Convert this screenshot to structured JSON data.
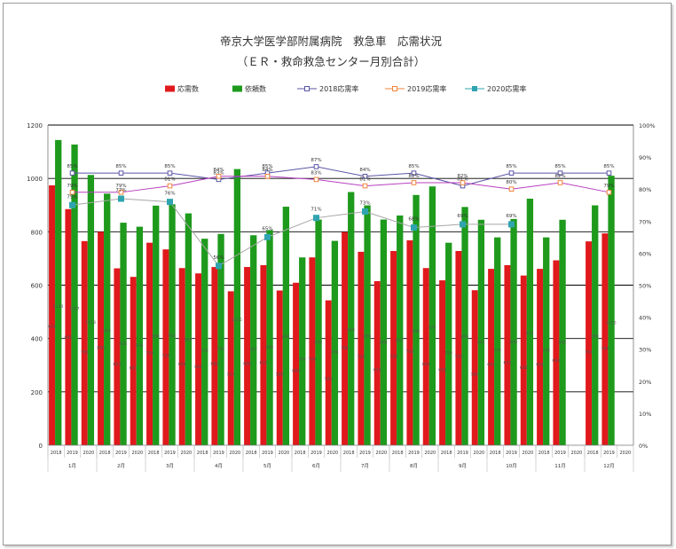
{
  "chart_data": {
    "type": "bar",
    "title": "帝京大学医学部附属病院　救急車　応需状況",
    "subtitle": "（ＥＲ・救命救急センター月別合計）",
    "months": [
      "1月",
      "2月",
      "3月",
      "4月",
      "5月",
      "6月",
      "7月",
      "8月",
      "9月",
      "10月",
      "11月",
      "12月"
    ],
    "years": [
      "2018",
      "2019",
      "2020"
    ],
    "ylim": [
      0,
      1200
    ],
    "yticks": [
      0,
      200,
      400,
      600,
      800,
      1000,
      1200
    ],
    "y2lim": [
      0,
      100
    ],
    "y2ticks": [
      "0%",
      "10%",
      "20%",
      "30%",
      "40%",
      "50%",
      "60%",
      "70%",
      "80%",
      "90%",
      "100%"
    ],
    "grid": true,
    "legend_position": "top",
    "colors": {
      "応需数": "#e0191c",
      "依頼数": "#1e9a1c",
      "2018応需率": "#5b55a6",
      "2019応需率": "#f0863c",
      "2020応需率": "#2fa4b0",
      "2019line": "#b83fbf",
      "2020line": "#a6a6a6"
    },
    "legend": [
      "応需数",
      "依頼数",
      "2018応需率",
      "2019応需率",
      "2020応需率"
    ],
    "bars": {
      "応需数": [
        974,
        885,
        765,
        800,
        663,
        631,
        759,
        734,
        664,
        644,
        668,
        577,
        668,
        675,
        580,
        609,
        704,
        543,
        799,
        725,
        615,
        728,
        768,
        664,
        618,
        728,
        581,
        661,
        675,
        636,
        661,
        693,
        null,
        764,
        794,
        null
      ],
      "依頼数": [
        1144,
        1127,
        1013,
        943,
        834,
        819,
        898,
        903,
        869,
        774,
        792,
        1035,
        787,
        806,
        894,
        704,
        846,
        766,
        949,
        899,
        846,
        861,
        938,
        970,
        759,
        893,
        845,
        779,
        848,
        924,
        779,
        845,
        null,
        899,
        1010,
        null
      ]
    },
    "bar_labels": {
      "応需数": [
        "974",
        "885",
        "765",
        "800",
        "663",
        "631",
        "759",
        "734",
        "664",
        "644",
        "668",
        "577",
        "668",
        "675",
        "580",
        "609",
        "704",
        "543",
        "799",
        "725",
        "615",
        "728",
        "768",
        "664",
        "618",
        "728",
        "581",
        "661",
        "675",
        "636",
        "661",
        "693",
        "",
        "764",
        "794",
        ""
      ],
      "依頼数": [
        "1144",
        "1127",
        "1013",
        "943",
        "834",
        "819",
        "898",
        "903",
        "869",
        "774",
        "792",
        "1035",
        "787",
        "806",
        "894",
        "704",
        "846",
        "766",
        "949",
        "899",
        "846",
        "861",
        "938",
        "970",
        "759",
        "893",
        "845",
        "779",
        "848",
        "924",
        "779",
        "845",
        "",
        "899",
        "1010",
        ""
      ]
    },
    "rates": {
      "2018応需率": [
        85,
        85,
        85,
        83,
        85,
        87,
        84,
        85,
        81,
        85,
        85,
        85
      ],
      "2019応需率": [
        79,
        79,
        81,
        84,
        84,
        83,
        81,
        82,
        82,
        80,
        82,
        79
      ],
      "2020応需率": [
        75,
        77,
        76,
        56,
        65,
        71,
        73,
        68,
        69,
        69,
        null,
        null
      ]
    },
    "rate_labels": {
      "2018応需率": [
        "85%",
        "85%",
        "85%",
        "83%",
        "85%",
        "87%",
        "84%",
        "85%",
        "81%",
        "85%",
        "85%",
        "85%"
      ],
      "2019応需率": [
        "79%",
        "79%",
        "81%",
        "84%",
        "84%",
        "83%",
        "81%",
        "82%",
        "82%",
        "80%",
        "82%",
        "79%"
      ],
      "2020応需率": [
        "75%",
        "77%",
        "76%",
        "56%",
        "65%",
        "71%",
        "73%",
        "68%",
        "69%",
        "69%",
        "",
        ""
      ]
    }
  }
}
